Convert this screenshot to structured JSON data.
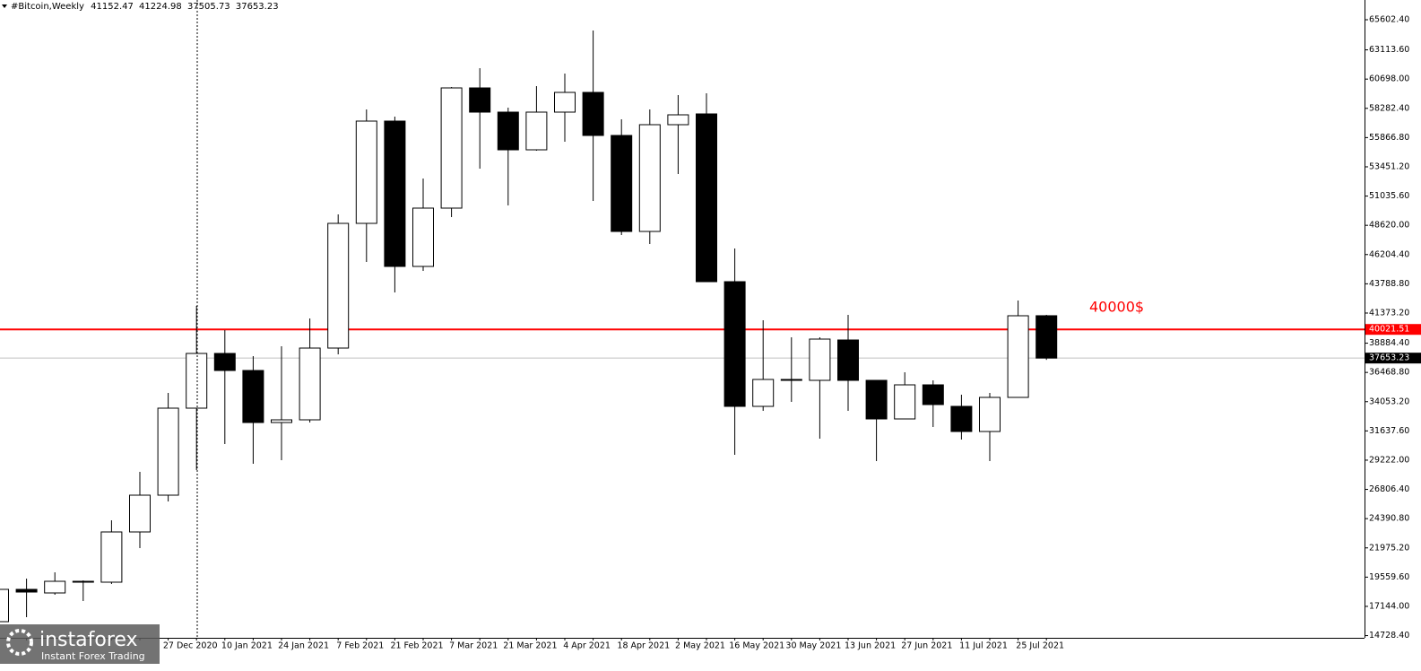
{
  "chart_data": {
    "type": "candlestick",
    "symbol": "#Bitcoin,Weekly",
    "categories": [
      null,
      null,
      null,
      null,
      null,
      null,
      null,
      "27 Dec 2020",
      null,
      "10 Jan 2021",
      null,
      "24 Jan 2021",
      null,
      "7 Feb 2021",
      null,
      "21 Feb 2021",
      null,
      "7 Mar 2021",
      null,
      "21 Mar 2021",
      null,
      "4 Apr 2021",
      null,
      "18 Apr 2021",
      null,
      "2 May 2021",
      null,
      "16 May 2021",
      null,
      "30 May 2021",
      null,
      "13 Jun 2021",
      null,
      "27 Jun 2021",
      null,
      "11 Jul 2021",
      null,
      "25 Jul 2021"
    ],
    "open": [
      15881,
      18548,
      18252,
      19142,
      19142,
      23291,
      26329,
      33517,
      38037,
      36629,
      32331,
      32553,
      38481,
      48781,
      57229,
      45224,
      50041,
      59970,
      57970,
      54857,
      57970,
      59600,
      56043,
      48114,
      56932,
      57822,
      43965,
      33665,
      35814,
      35814,
      39148,
      35814,
      32627,
      35443,
      33665,
      31589,
      34406,
      41152.47
    ],
    "high": [
      18548,
      19437,
      19956,
      19289,
      24254,
      28255,
      34776,
      41964,
      39963,
      37814,
      38629,
      40926,
      49522,
      58192,
      57599,
      52486,
      60044,
      61600,
      58340,
      60118,
      61156,
      64713,
      57377,
      58192,
      59377,
      59526,
      46706,
      40778,
      39370,
      39370,
      41223,
      35814,
      36481,
      35814,
      34628,
      34776,
      42409,
      41224.98
    ],
    "low": [
      15881,
      16251,
      18104,
      17585,
      18993,
      21957,
      25810,
      28404,
      30553,
      28922,
      29219,
      32331,
      37963,
      45595,
      43075,
      44854,
      49300,
      53301,
      50263,
      54783,
      55524,
      50634,
      47818,
      47077,
      52857,
      43965,
      29663,
      33294,
      34036,
      30997,
      33294,
      29145,
      32627,
      31961,
      30923,
      29145,
      34406,
      37505.73
    ],
    "close": [
      18548,
      18326,
      19215,
      19215,
      23291,
      26329,
      33517,
      38037,
      36629,
      32331,
      32553,
      38481,
      48781,
      57229,
      45224,
      50041,
      59970,
      57970,
      54857,
      57970,
      59600,
      56043,
      48114,
      56932,
      57747,
      43965,
      33665,
      35888,
      35888,
      39222,
      35814,
      32627,
      35443,
      33813,
      31589,
      34406,
      41149,
      37653.23
    ],
    "up_color": "#ffffff",
    "down_color": "#000000",
    "ylim": [
      14547,
      67232
    ],
    "yticks": [
      {
        "value": 65602.4,
        "label": "65602.40"
      },
      {
        "value": 63113.6,
        "label": "63113.60"
      },
      {
        "value": 60698,
        "label": "60698.00"
      },
      {
        "value": 58282.4,
        "label": "58282.40"
      },
      {
        "value": 55866.8,
        "label": "55866.80"
      },
      {
        "value": 53451.2,
        "label": "53451.20"
      },
      {
        "value": 51035.6,
        "label": "51035.60"
      },
      {
        "value": 48620,
        "label": "48620.00"
      },
      {
        "value": 46204.4,
        "label": "46204.40"
      },
      {
        "value": 43788.8,
        "label": "43788.80"
      },
      {
        "value": 41373.2,
        "label": "41373.20"
      },
      {
        "value": 38884.4,
        "label": "38884.40"
      },
      {
        "value": 36468.8,
        "label": "36468.80"
      },
      {
        "value": 34053.2,
        "label": "34053.20"
      },
      {
        "value": 31637.6,
        "label": "31637.60"
      },
      {
        "value": 29222,
        "label": "29222.00"
      },
      {
        "value": 26806.4,
        "label": "26806.40"
      },
      {
        "value": 24390.8,
        "label": "24390.80"
      },
      {
        "value": 21975.2,
        "label": "21975.20"
      },
      {
        "value": 19559.6,
        "label": "19559.60"
      },
      {
        "value": 17144,
        "label": "17144.00"
      },
      {
        "value": 14728.4,
        "label": "14728.40"
      }
    ],
    "hlines": [
      {
        "value": 40021.51,
        "color": "#ff0000"
      },
      {
        "value": 37653.23,
        "color": "#c0c0c0",
        "tag_color": "#000000"
      }
    ],
    "annotation": {
      "text": "40000$",
      "color": "#ff0000"
    },
    "logo": {
      "name": "instaforex",
      "tagline": "Instant Forex Trading"
    }
  }
}
